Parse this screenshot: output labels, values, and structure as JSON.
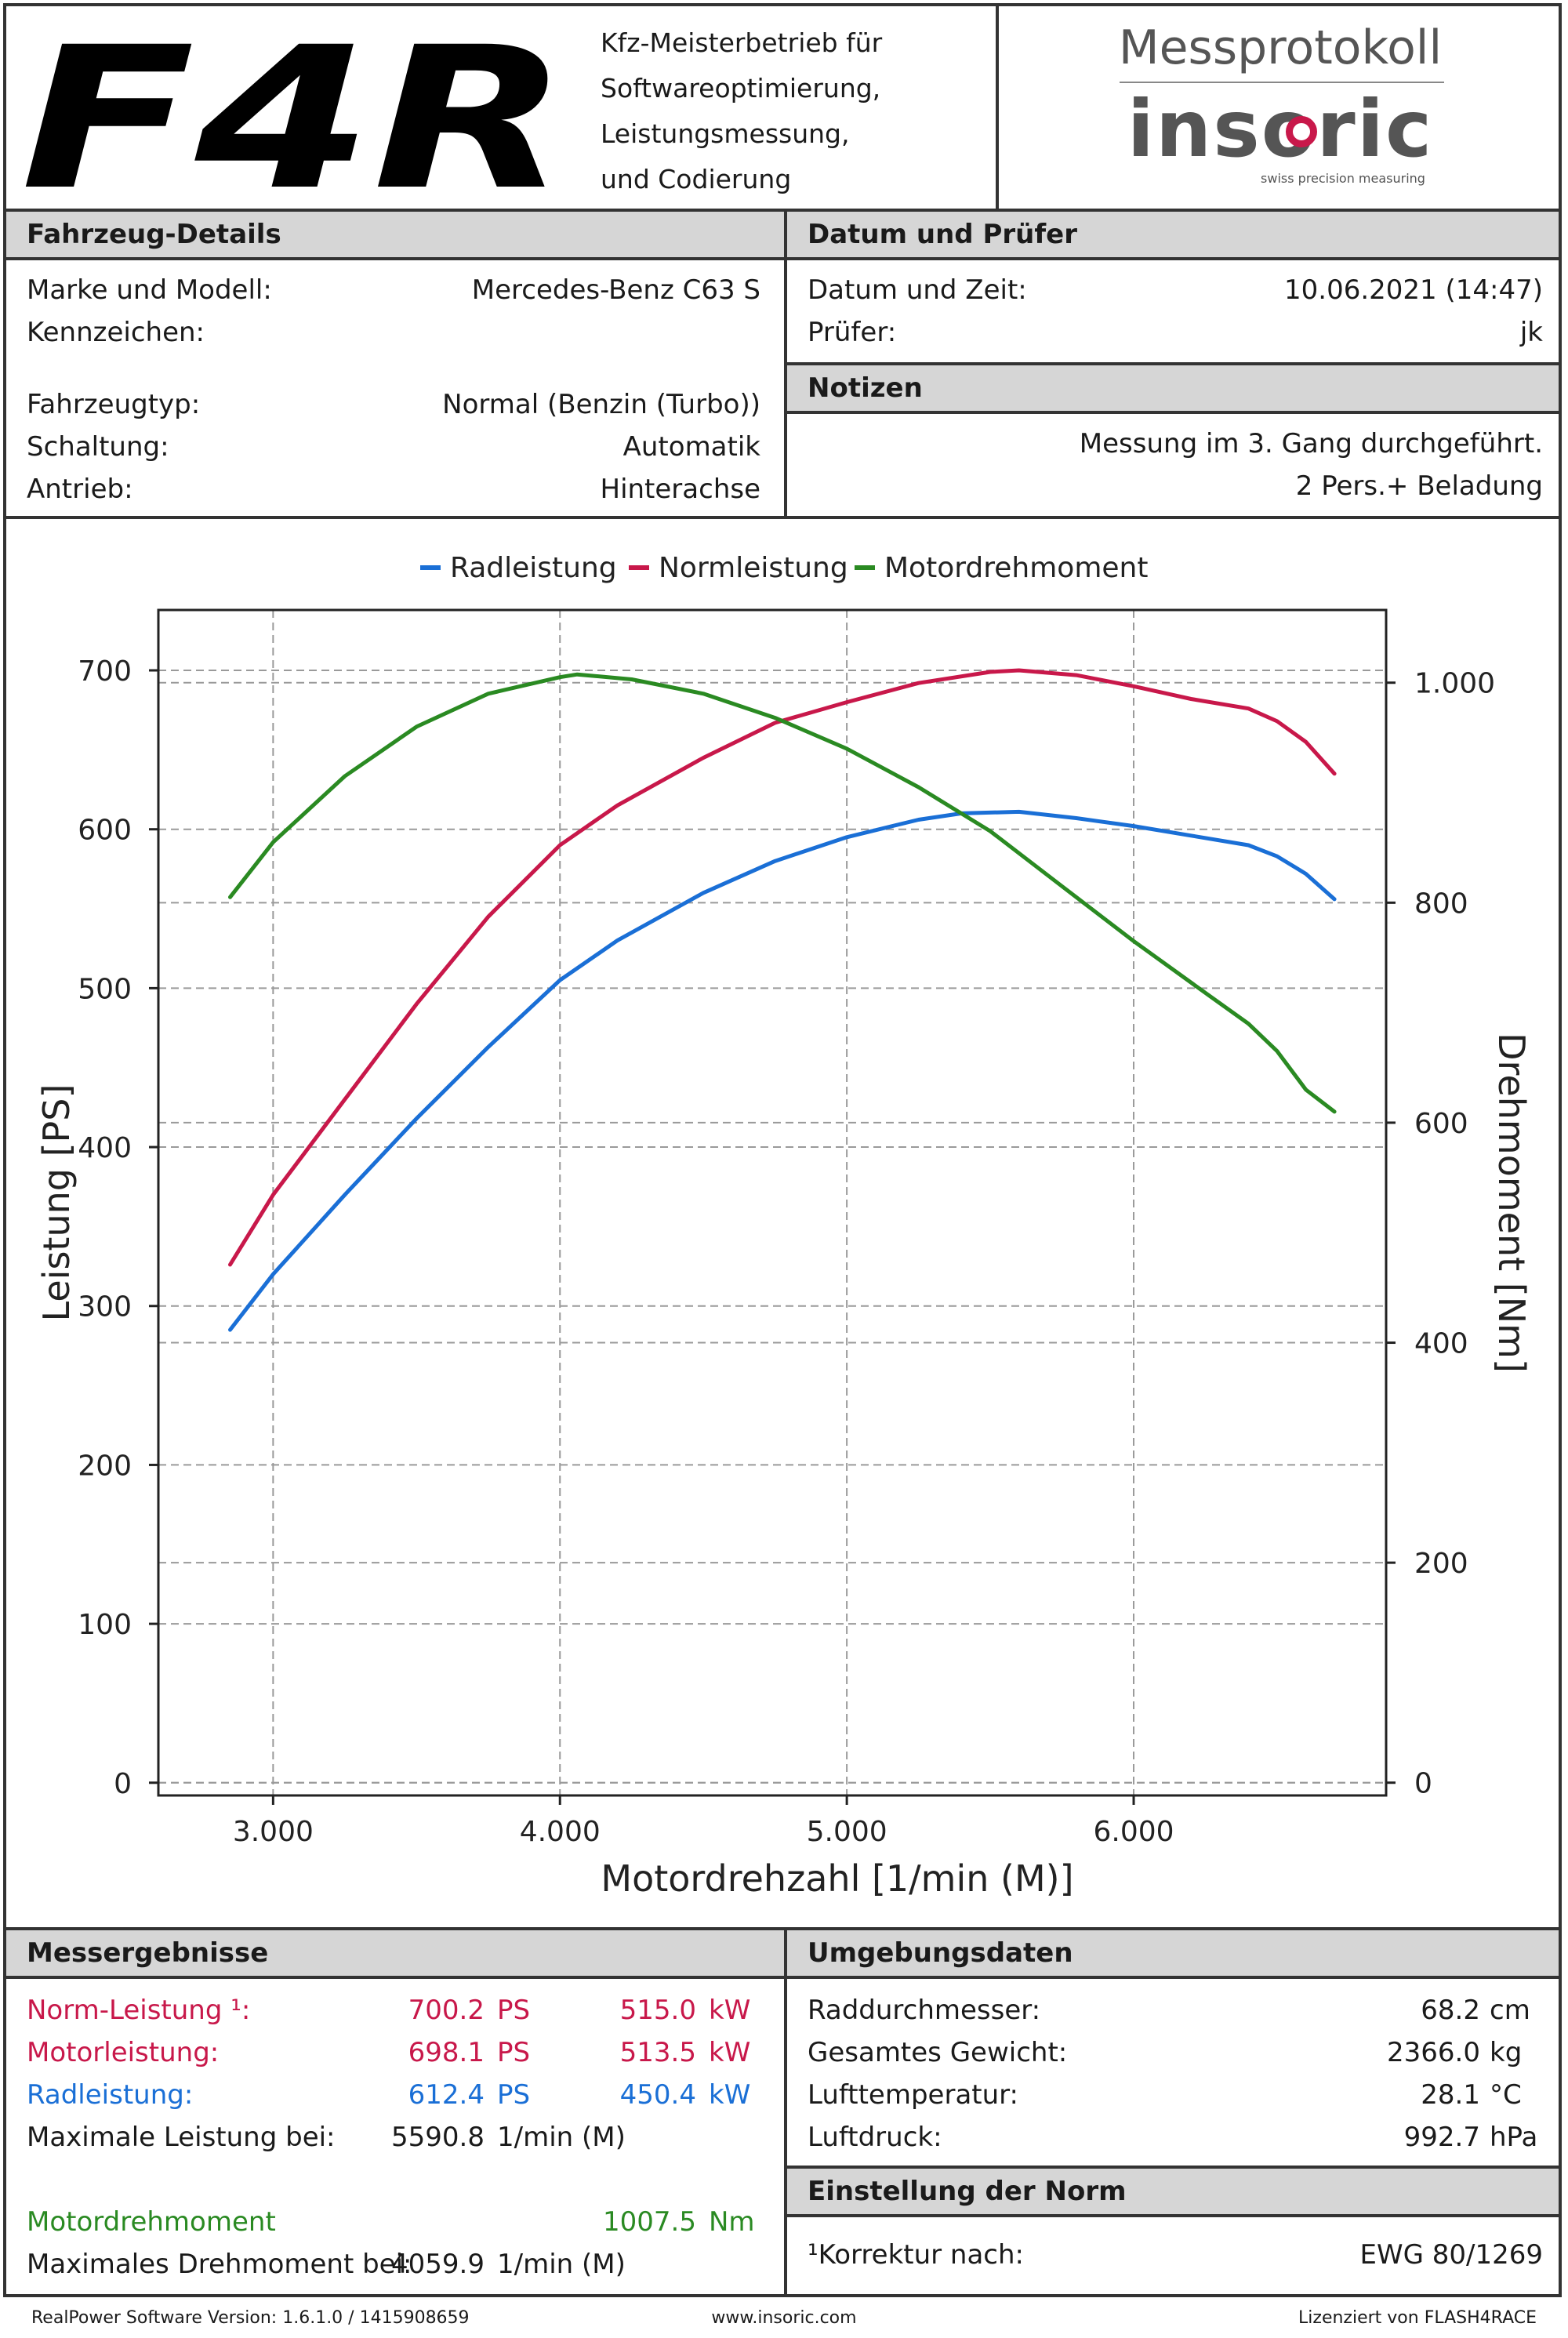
{
  "header": {
    "logo_text": "F4R",
    "company_lines": [
      "Kfz-Meisterbetrieb für",
      "Softwareoptimierung,",
      "Leistungsmessung,",
      "und Codierung"
    ],
    "protocol_title": "Messprotokoll",
    "brand": "insoric",
    "brand_tagline": "swiss precision measuring",
    "brand_accent": "#c8184a"
  },
  "vehicle": {
    "title": "Fahrzeug-Details",
    "rows": [
      {
        "label": "Marke und Modell:",
        "value": "Mercedes-Benz C63 S"
      },
      {
        "label": "Kennzeichen:",
        "value": ""
      },
      {
        "label": "Fahrzeugtyp:",
        "value": "Normal (Benzin (Turbo))"
      },
      {
        "label": "Schaltung:",
        "value": "Automatik"
      },
      {
        "label": "Antrieb:",
        "value": "Hinterachse"
      }
    ]
  },
  "date": {
    "title": "Datum und Prüfer",
    "rows": [
      {
        "label": "Datum und Zeit:",
        "value": "10.06.2021 (14:47)"
      },
      {
        "label": "Prüfer:",
        "value": "jk"
      }
    ]
  },
  "notes": {
    "title": "Notizen",
    "lines": [
      "Messung im 3. Gang durchgeführt.",
      "2 Pers.+ Beladung"
    ]
  },
  "chart_data": {
    "type": "line",
    "xlabel": "Motordrehzahl [1/min (M)]",
    "ylabel": "Leistung [PS]",
    "y2label": "Drehmoment [Nm]",
    "xlim": [
      2600,
      6880
    ],
    "ylim": [
      -8,
      738
    ],
    "y2lim": [
      -11.6,
      1066.1
    ],
    "x_ticks": [
      {
        "v": 3000,
        "label": "3.000"
      },
      {
        "v": 4000,
        "label": "4.000"
      },
      {
        "v": 5000,
        "label": "5.000"
      },
      {
        "v": 6000,
        "label": "6.000"
      }
    ],
    "y_ticks": [
      0,
      100,
      200,
      300,
      400,
      500,
      600,
      700
    ],
    "y2_ticks": [
      {
        "v": 0,
        "label": "0"
      },
      {
        "v": 200,
        "label": "200"
      },
      {
        "v": 400,
        "label": "400"
      },
      {
        "v": 600,
        "label": "600"
      },
      {
        "v": 800,
        "label": "800"
      },
      {
        "v": 1000,
        "label": "1.000"
      }
    ],
    "grid": true,
    "legend_position": "top",
    "series": [
      {
        "name": "Radleistung",
        "axis": "left",
        "color": "#1a6fd6",
        "x": [
          2850,
          3000,
          3250,
          3500,
          3750,
          4000,
          4200,
          4500,
          4750,
          5000,
          5250,
          5400,
          5600,
          5800,
          6000,
          6200,
          6400,
          6500,
          6600,
          6700
        ],
        "y": [
          285,
          320,
          370,
          418,
          463,
          505,
          530,
          560,
          580,
          595,
          606,
          610,
          611,
          607,
          602,
          596,
          590,
          583,
          572,
          556
        ]
      },
      {
        "name": "Normleistung",
        "axis": "left",
        "color": "#c8184a",
        "x": [
          2850,
          3000,
          3250,
          3500,
          3750,
          4000,
          4200,
          4500,
          4750,
          5000,
          5250,
          5500,
          5600,
          5800,
          6000,
          6200,
          6400,
          6500,
          6600,
          6700
        ],
        "y": [
          326,
          370,
          430,
          490,
          545,
          590,
          615,
          645,
          667,
          680,
          692,
          699,
          700,
          697,
          690,
          682,
          676,
          668,
          655,
          635
        ]
      },
      {
        "name": "Motordrehmoment",
        "axis": "right",
        "color": "#2a8a22",
        "x": [
          2850,
          3000,
          3250,
          3500,
          3750,
          4000,
          4060,
          4250,
          4500,
          4750,
          5000,
          5250,
          5500,
          5750,
          6000,
          6250,
          6400,
          6500,
          6600,
          6700
        ],
        "y": [
          805,
          855,
          915,
          960,
          990,
          1005,
          1007.5,
          1003,
          990,
          968,
          940,
          905,
          865,
          815,
          765,
          718,
          690,
          665,
          630,
          610
        ]
      }
    ]
  },
  "results": {
    "title": "Messergebnisse",
    "rows": [
      {
        "label": "Norm-Leistung ¹:",
        "ps": "700.2",
        "ps_unit": "PS",
        "kw": "515.0",
        "kw_unit": "kW",
        "color": "#c8184a"
      },
      {
        "label": "Motorleistung:",
        "ps": "698.1",
        "ps_unit": "PS",
        "kw": "513.5",
        "kw_unit": "kW",
        "color": "#c8184a"
      },
      {
        "label": "Radleistung:",
        "ps": "612.4",
        "ps_unit": "PS",
        "kw": "450.4",
        "kw_unit": "kW",
        "color": "#1a6fd6"
      }
    ],
    "max_power_label": "Maximale Leistung bei:",
    "max_power_value": "5590.8",
    "max_power_unit": "1/min (M)",
    "torque_label": "Motordrehmoment",
    "torque_value": "1007.5",
    "torque_unit": "Nm",
    "torque_color": "#2a8a22",
    "max_torque_label": "Maximales Drehmoment bei:",
    "max_torque_value": "4059.9",
    "max_torque_unit": "1/min (M)"
  },
  "environment": {
    "title": "Umgebungsdaten",
    "rows": [
      {
        "label": "Raddurchmesser:",
        "value": "68.2",
        "unit": "cm"
      },
      {
        "label": "Gesamtes Gewicht:",
        "value": "2366.0",
        "unit": "kg"
      },
      {
        "label": "Lufttemperatur:",
        "value": "28.1",
        "unit": "°C"
      },
      {
        "label": "Luftdruck:",
        "value": "992.7",
        "unit": "hPa"
      }
    ]
  },
  "norm": {
    "title": "Einstellung der Norm",
    "label": "¹Korrektur nach:",
    "value": "EWG 80/1269"
  },
  "footer": {
    "left": "RealPower Software Version: 1.6.1.0 / 1415908659",
    "center": "www.insoric.com",
    "right": "Lizenziert von FLASH4RACE"
  }
}
